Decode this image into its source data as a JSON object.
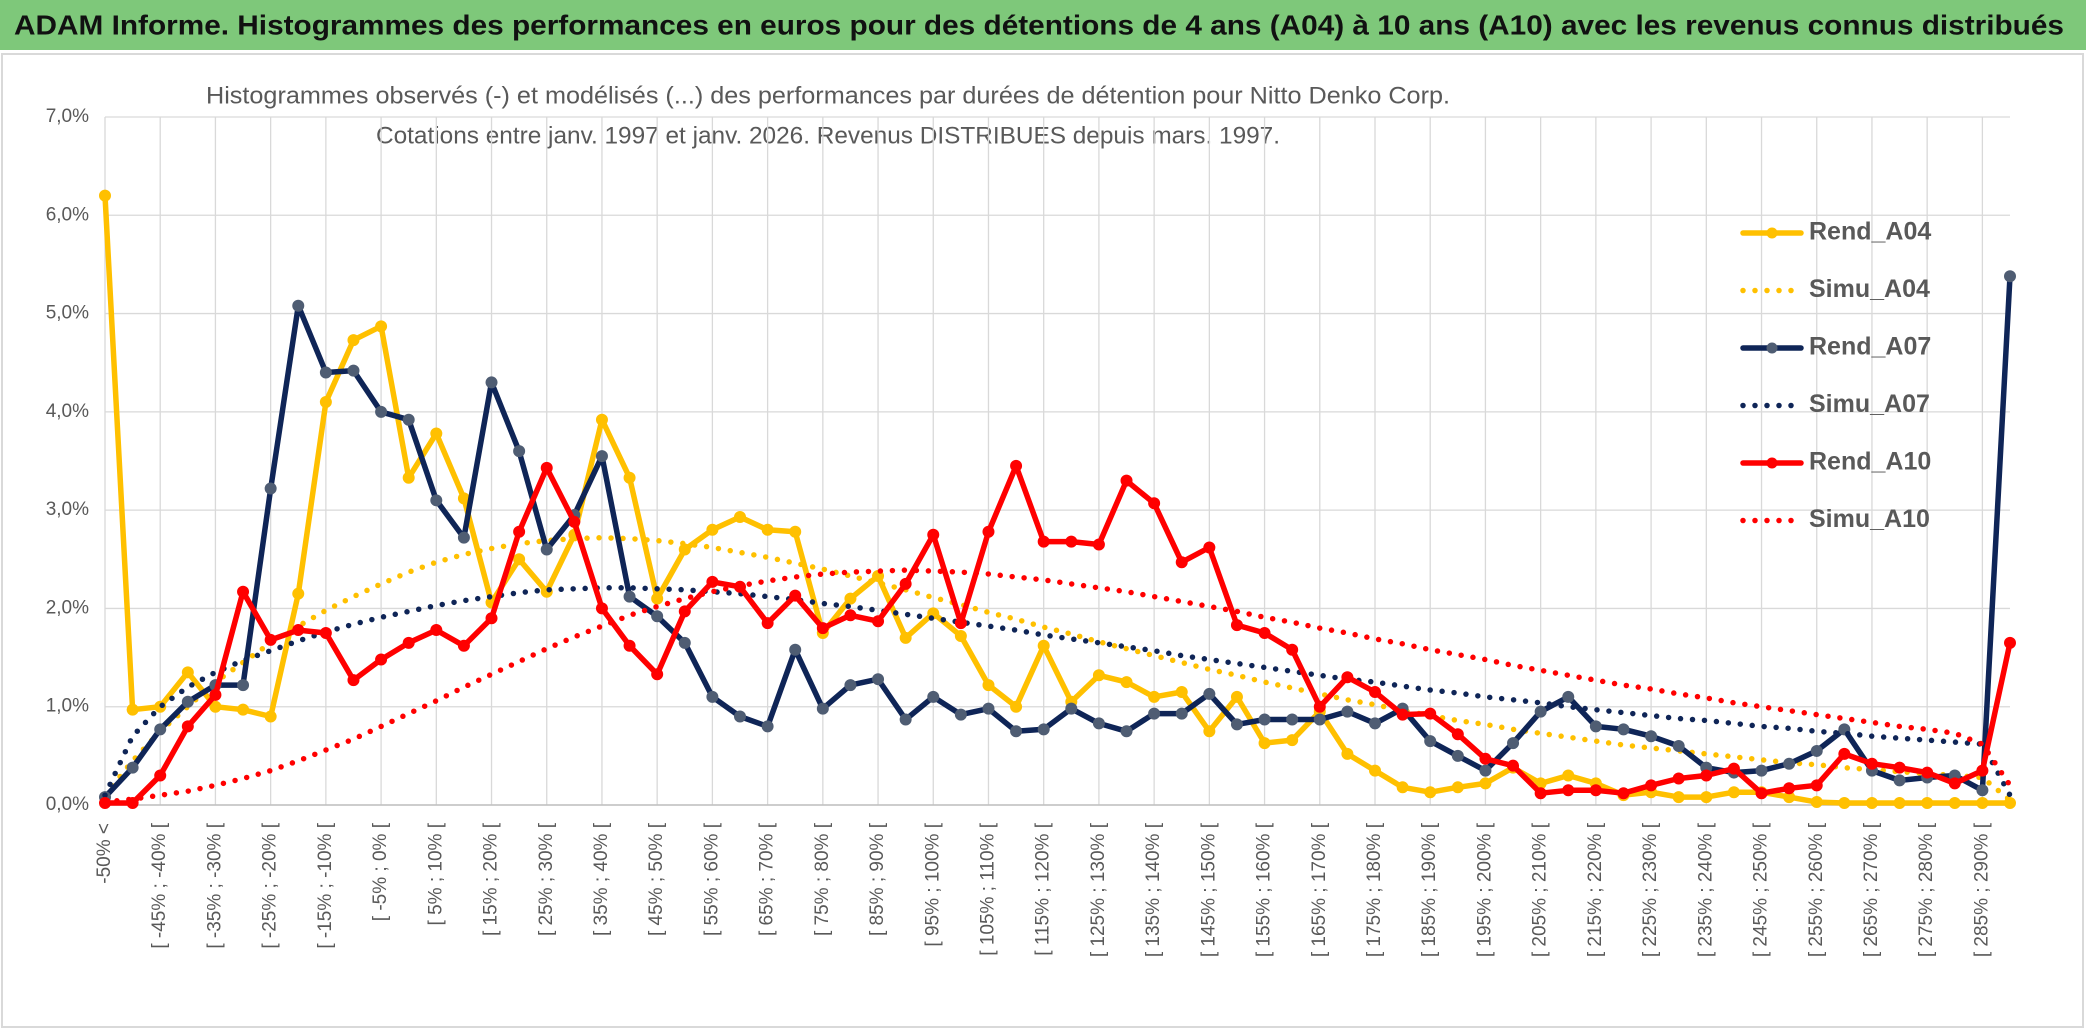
{
  "header": {
    "title": "ADAM Informe. Histogrammes des performances en euros pour des détentions de 4 ans (A04) à 10 ans (A10) avec les revenus connus distribués"
  },
  "chart_data": {
    "type": "line",
    "title": "Histogrammes observés (-) et modélisés (...) des performances par durées de détention pour Nitto Denko Corp.",
    "subtitle": "Cotations entre janv. 1997 et janv. 2026. Revenus DISTRIBUES depuis mars. 1997.",
    "categories": [
      "-50% <",
      null,
      "[ -45% ; -40% [",
      null,
      "[ -35% ; -30% [",
      null,
      "[ -25% ; -20% [",
      null,
      "[ -15% ; -10% [",
      null,
      "[ -5% ; 0% [",
      null,
      "[ 5% ; 10% [",
      null,
      "[ 15% ; 20% [",
      null,
      "[ 25% ; 30% [",
      null,
      "[ 35% ; 40% [",
      null,
      "[ 45% ; 50% [",
      null,
      "[ 55% ; 60% [",
      null,
      "[ 65% ; 70% [",
      null,
      "[ 75% ; 80% [",
      null,
      "[ 85% ; 90% [",
      null,
      "[ 95% ; 100% [",
      null,
      "[ 105% ; 110% [",
      null,
      "[ 115% ; 120% [",
      null,
      "[ 125% ; 130% [",
      null,
      "[ 135% ; 140% [",
      null,
      "[ 145% ; 150% [",
      null,
      "[ 155% ; 160% [",
      null,
      "[ 165% ; 170% [",
      null,
      "[ 175% ; 180% [",
      null,
      "[ 185% ; 190% [",
      null,
      "[ 195% ; 200% [",
      null,
      "[ 205% ; 210% [",
      null,
      "[ 215% ; 220% [",
      null,
      "[ 225% ; 230% [",
      null,
      "[ 235% ; 240% [",
      null,
      "[ 245% ; 250% [",
      null,
      "[ 255% ; 260% [",
      null,
      "[ 265% ; 270% [",
      null,
      "[ 275% ; 280% [",
      null,
      "[ 285% ; 290% [",
      null
    ],
    "ylim": [
      0,
      7
    ],
    "yticks": [
      {
        "value": 0,
        "label": "0,0%"
      },
      {
        "value": 1,
        "label": "1,0%"
      },
      {
        "value": 2,
        "label": "2,0%"
      },
      {
        "value": 3,
        "label": "3,0%"
      },
      {
        "value": 4,
        "label": "4,0%"
      },
      {
        "value": 5,
        "label": "5,0%"
      },
      {
        "value": 6,
        "label": "6,0%"
      },
      {
        "value": 7,
        "label": "7,0%"
      }
    ],
    "grid": true,
    "legend": "right",
    "series": [
      {
        "name": "Rend_A04",
        "color": "#ffc000",
        "line_style": "solid",
        "markers": true,
        "values": [
          6.2,
          0.97,
          1.0,
          1.35,
          1.0,
          0.97,
          0.9,
          2.15,
          4.1,
          4.73,
          4.87,
          3.33,
          3.78,
          3.12,
          2.06,
          2.5,
          2.17,
          2.75,
          3.92,
          3.33,
          2.1,
          2.6,
          2.8,
          2.93,
          2.8,
          2.78,
          1.75,
          2.1,
          2.33,
          1.7,
          1.95,
          1.72,
          1.22,
          1.0,
          1.62,
          1.05,
          1.32,
          1.25,
          1.1,
          1.15,
          0.75,
          1.1,
          0.63,
          0.66,
          0.95,
          0.52,
          0.35,
          0.18,
          0.13,
          0.18,
          0.22,
          0.38,
          0.22,
          0.3,
          0.22,
          0.1,
          0.13,
          0.08,
          0.08,
          0.13,
          0.13,
          0.08,
          0.03,
          0.02,
          0.02,
          0.02,
          0.02,
          0.02,
          0.02,
          0.02
        ]
      },
      {
        "name": "Simu_A04",
        "color": "#ffc000",
        "line_style": "dotted",
        "markers": false,
        "values": [
          0.1,
          0.45,
          0.75,
          1.0,
          1.25,
          1.45,
          1.65,
          1.82,
          1.98,
          2.12,
          2.25,
          2.37,
          2.47,
          2.55,
          2.61,
          2.66,
          2.69,
          2.71,
          2.72,
          2.71,
          2.69,
          2.66,
          2.62,
          2.57,
          2.52,
          2.46,
          2.4,
          2.33,
          2.26,
          2.19,
          2.11,
          2.04,
          1.96,
          1.89,
          1.81,
          1.74,
          1.66,
          1.59,
          1.52,
          1.45,
          1.38,
          1.32,
          1.25,
          1.19,
          1.13,
          1.07,
          1.02,
          0.96,
          0.91,
          0.86,
          0.82,
          0.77,
          0.73,
          0.69,
          0.65,
          0.61,
          0.58,
          0.55,
          0.52,
          0.49,
          0.46,
          0.43,
          0.41,
          0.38,
          0.36,
          0.34,
          0.32,
          0.3,
          0.28,
          0.05
        ]
      },
      {
        "name": "Rend_A07",
        "color": "#0f2557",
        "marker_color": "#4f5d73",
        "line_style": "solid",
        "markers": true,
        "values": [
          0.08,
          0.38,
          0.77,
          1.05,
          1.22,
          1.22,
          3.22,
          5.08,
          4.4,
          4.42,
          4.0,
          3.92,
          3.1,
          2.72,
          4.3,
          3.6,
          2.6,
          2.95,
          3.55,
          2.12,
          1.92,
          1.65,
          1.1,
          0.9,
          0.8,
          1.58,
          0.98,
          1.22,
          1.28,
          0.87,
          1.1,
          0.92,
          0.98,
          0.75,
          0.77,
          0.98,
          0.83,
          0.75,
          0.93,
          0.93,
          1.13,
          0.82,
          0.87,
          0.87,
          0.87,
          0.95,
          0.83,
          0.98,
          0.65,
          0.5,
          0.35,
          0.63,
          0.95,
          1.1,
          0.8,
          0.77,
          0.7,
          0.6,
          0.38,
          0.33,
          0.35,
          0.42,
          0.55,
          0.77,
          0.35,
          0.25,
          0.28,
          0.3,
          0.15,
          5.38
        ]
      },
      {
        "name": "Simu_A07",
        "color": "#0f2557",
        "line_style": "dotted",
        "markers": false,
        "values": [
          0.1,
          0.7,
          1.0,
          1.2,
          1.35,
          1.47,
          1.57,
          1.67,
          1.76,
          1.84,
          1.91,
          1.97,
          2.03,
          2.08,
          2.12,
          2.16,
          2.19,
          2.2,
          2.21,
          2.21,
          2.2,
          2.19,
          2.17,
          2.15,
          2.12,
          2.09,
          2.05,
          2.02,
          1.98,
          1.94,
          1.9,
          1.86,
          1.82,
          1.78,
          1.73,
          1.69,
          1.65,
          1.61,
          1.57,
          1.52,
          1.48,
          1.44,
          1.4,
          1.36,
          1.32,
          1.28,
          1.25,
          1.21,
          1.17,
          1.14,
          1.1,
          1.07,
          1.04,
          1.0,
          0.97,
          0.94,
          0.91,
          0.88,
          0.86,
          0.83,
          0.8,
          0.78,
          0.75,
          0.73,
          0.7,
          0.68,
          0.66,
          0.64,
          0.62,
          0.1
        ]
      },
      {
        "name": "Rend_A10",
        "color": "#ff0000",
        "line_style": "solid",
        "markers": true,
        "values": [
          0.02,
          0.02,
          0.3,
          0.8,
          1.12,
          2.17,
          1.68,
          1.78,
          1.75,
          1.27,
          1.48,
          1.65,
          1.78,
          1.62,
          1.9,
          2.78,
          3.43,
          2.88,
          2.0,
          1.62,
          1.33,
          1.97,
          2.27,
          2.22,
          1.85,
          2.13,
          1.8,
          1.93,
          1.87,
          2.25,
          2.75,
          1.85,
          2.78,
          3.45,
          2.68,
          2.68,
          2.65,
          3.3,
          3.07,
          2.47,
          2.62,
          1.83,
          1.75,
          1.58,
          1.0,
          1.3,
          1.15,
          0.92,
          0.93,
          0.72,
          0.47,
          0.4,
          0.12,
          0.15,
          0.15,
          0.12,
          0.2,
          0.27,
          0.3,
          0.37,
          0.12,
          0.17,
          0.2,
          0.52,
          0.42,
          0.38,
          0.33,
          0.22,
          0.35,
          1.65
        ]
      },
      {
        "name": "Simu_A10",
        "color": "#ff0000",
        "line_style": "dotted",
        "markers": false,
        "values": [
          0.03,
          0.06,
          0.1,
          0.14,
          0.2,
          0.27,
          0.35,
          0.45,
          0.56,
          0.67,
          0.8,
          0.93,
          1.06,
          1.2,
          1.33,
          1.46,
          1.59,
          1.71,
          1.82,
          1.93,
          2.02,
          2.1,
          2.17,
          2.23,
          2.28,
          2.32,
          2.35,
          2.37,
          2.38,
          2.39,
          2.38,
          2.37,
          2.35,
          2.32,
          2.29,
          2.25,
          2.21,
          2.17,
          2.12,
          2.07,
          2.02,
          1.97,
          1.91,
          1.86,
          1.8,
          1.75,
          1.69,
          1.64,
          1.58,
          1.53,
          1.48,
          1.42,
          1.37,
          1.32,
          1.27,
          1.22,
          1.18,
          1.13,
          1.09,
          1.04,
          1.0,
          0.96,
          0.92,
          0.88,
          0.84,
          0.8,
          0.77,
          0.73,
          0.62,
          0.2
        ]
      }
    ]
  }
}
